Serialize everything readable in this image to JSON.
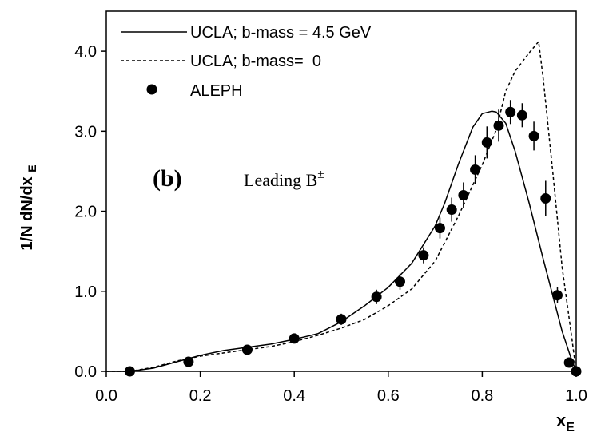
{
  "chart_data": {
    "type": "line",
    "panel_label": "(b)",
    "annotation": {
      "main": "Leading B",
      "superscript": "±"
    },
    "xlabel": {
      "main": "x",
      "subscript": "E"
    },
    "ylabel": "1/N dN/dx ",
    "ylabel_sub": "E",
    "xlim": [
      0.0,
      1.0
    ],
    "ylim": [
      0.0,
      4.5
    ],
    "x_ticks": [
      "0.0",
      "0.2",
      "0.4",
      "0.6",
      "0.8",
      "1.0"
    ],
    "y_ticks": [
      "0.0",
      "1.0",
      "2.0",
      "3.0",
      "4.0"
    ],
    "grid": false,
    "legend_position": "top-left",
    "series": [
      {
        "name": "UCLA; b-mass = 4.5 GeV",
        "style": "solid",
        "color": "#000000",
        "x": [
          0.0,
          0.05,
          0.1,
          0.15,
          0.2,
          0.25,
          0.3,
          0.35,
          0.4,
          0.45,
          0.5,
          0.55,
          0.6,
          0.65,
          0.7,
          0.72,
          0.75,
          0.78,
          0.8,
          0.82,
          0.83,
          0.85,
          0.87,
          0.9,
          0.93,
          0.95,
          0.97,
          0.99,
          1.0
        ],
        "y": [
          0.0,
          0.0,
          0.04,
          0.12,
          0.2,
          0.26,
          0.3,
          0.34,
          0.4,
          0.47,
          0.62,
          0.82,
          1.05,
          1.35,
          1.82,
          2.1,
          2.6,
          3.05,
          3.22,
          3.25,
          3.24,
          3.1,
          2.75,
          2.1,
          1.4,
          0.95,
          0.5,
          0.15,
          0.0
        ]
      },
      {
        "name": "UCLA; b-mass=  0",
        "style": "dashed",
        "color": "#000000",
        "x": [
          0.0,
          0.05,
          0.1,
          0.15,
          0.2,
          0.25,
          0.3,
          0.35,
          0.4,
          0.45,
          0.5,
          0.55,
          0.6,
          0.65,
          0.7,
          0.75,
          0.8,
          0.83,
          0.85,
          0.87,
          0.9,
          0.92,
          0.93,
          0.95,
          0.97,
          0.99,
          1.0
        ],
        "y": [
          0.0,
          0.0,
          0.05,
          0.13,
          0.19,
          0.23,
          0.27,
          0.31,
          0.37,
          0.45,
          0.54,
          0.65,
          0.82,
          1.03,
          1.38,
          1.95,
          2.58,
          3.02,
          3.5,
          3.75,
          3.98,
          4.12,
          3.65,
          2.5,
          1.3,
          0.45,
          0.0
        ]
      }
    ],
    "points": {
      "name": "ALEPH",
      "marker": "filled-circle",
      "color": "#000000",
      "x": [
        0.05,
        0.175,
        0.3,
        0.4,
        0.5,
        0.575,
        0.625,
        0.675,
        0.71,
        0.735,
        0.76,
        0.785,
        0.81,
        0.835,
        0.86,
        0.885,
        0.91,
        0.935,
        0.96,
        0.985,
        1.0
      ],
      "y": [
        0.0,
        0.12,
        0.27,
        0.41,
        0.65,
        0.93,
        1.12,
        1.45,
        1.79,
        2.02,
        2.2,
        2.52,
        2.86,
        3.07,
        3.24,
        3.2,
        2.94,
        2.16,
        0.95,
        0.11,
        0.0
      ],
      "err": [
        0.04,
        0.06,
        0.05,
        0.05,
        0.07,
        0.09,
        0.1,
        0.1,
        0.13,
        0.15,
        0.16,
        0.18,
        0.2,
        0.2,
        0.15,
        0.15,
        0.18,
        0.22,
        0.1,
        0.05,
        0.02
      ]
    }
  }
}
